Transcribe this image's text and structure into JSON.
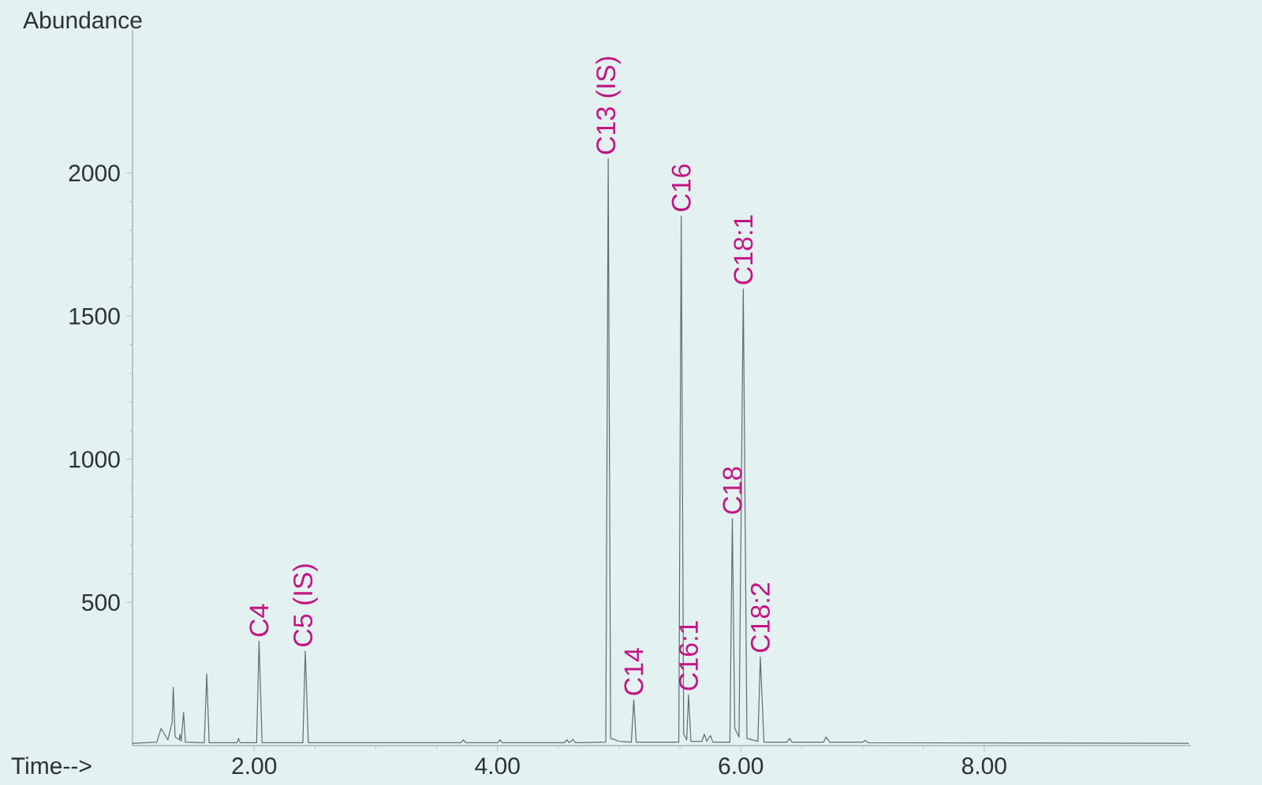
{
  "chart_data": {
    "type": "line",
    "xlabel": "Time-->",
    "ylabel": "Abundance",
    "xlim": [
      1.0,
      9.7
    ],
    "ylim": [
      0,
      2500
    ],
    "xticks": [
      {
        "value": 2,
        "label": "2.00"
      },
      {
        "value": 4,
        "label": "4.00"
      },
      {
        "value": 6,
        "label": "6.00"
      },
      {
        "value": 8,
        "label": "8.00"
      }
    ],
    "yticks": [
      500,
      1000,
      1500,
      2000
    ],
    "series": [
      {
        "color": "#5b6f74",
        "x": [
          1.0,
          1.2,
          1.22,
          1.235,
          1.29,
          1.31,
          1.325,
          1.335,
          1.35,
          1.385,
          1.39,
          1.4,
          1.42,
          1.435,
          1.59,
          1.61,
          1.63,
          1.86,
          1.87,
          1.885,
          2.02,
          2.04,
          2.065,
          2.4,
          2.42,
          2.445,
          3.7,
          3.72,
          3.74,
          4.0,
          4.02,
          4.04,
          4.55,
          4.57,
          4.59,
          4.62,
          4.64,
          4.89,
          4.91,
          4.93,
          5.0,
          5.1,
          5.12,
          5.14,
          5.49,
          5.51,
          5.53,
          5.555,
          5.57,
          5.59,
          5.68,
          5.7,
          5.72,
          5.75,
          5.77,
          5.91,
          5.93,
          5.95,
          5.985,
          6.02,
          6.05,
          6.14,
          6.16,
          6.19,
          6.38,
          6.4,
          6.42,
          6.68,
          6.7,
          6.73,
          7.0,
          7.02,
          7.05,
          9.68
        ],
        "values": [
          8,
          12,
          null,
          60,
          20,
          null,
          80,
          204,
          30,
          20,
          40,
          15,
          116,
          12,
          10,
          250,
          10,
          10,
          25,
          10,
          10,
          365,
          10,
          10,
          330,
          10,
          10,
          20,
          10,
          10,
          20,
          10,
          10,
          20,
          10,
          22,
          10,
          12,
          2050,
          25,
          15,
          12,
          160,
          12,
          12,
          1850,
          40,
          20,
          177,
          15,
          15,
          40,
          15,
          35,
          12,
          12,
          793,
          60,
          30,
          1595,
          25,
          15,
          310,
          12,
          12,
          25,
          12,
          12,
          30,
          12,
          12,
          18,
          10,
          8
        ]
      }
    ],
    "annotations": [
      {
        "text": "C4",
        "x": 2.04,
        "y": 365
      },
      {
        "text": "C5 (IS)",
        "x": 2.42,
        "y": 330
      },
      {
        "text": "C13 (IS)",
        "x": 4.91,
        "y": 2050
      },
      {
        "text": "C14",
        "x": 5.12,
        "y": 160
      },
      {
        "text": "C16",
        "x": 5.51,
        "y": 1850
      },
      {
        "text": "C16:1",
        "x": 5.57,
        "y": 177
      },
      {
        "text": "C18",
        "x": 5.93,
        "y": 793
      },
      {
        "text": "C18:1",
        "x": 6.02,
        "y": 1595
      },
      {
        "text": "C18:2",
        "x": 6.16,
        "y": 310
      }
    ]
  }
}
